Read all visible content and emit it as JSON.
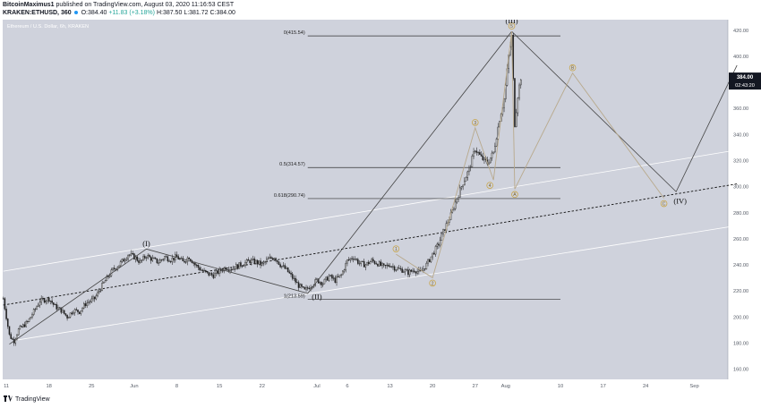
{
  "header": {
    "author": "BitcoinMaximus1",
    "published_text": "published on TradingView.com, August 03, 2020 11:16:53 CEST",
    "symbol": "KRAKEN:ETHUSD, 360",
    "ohlc_open": "O:384.40",
    "ohlc_change": "+11.83 (+3.18%)",
    "ohlc_high": "H:387.50",
    "ohlc_low": "L:381.72",
    "ohlc_close": "C:384.00"
  },
  "footer": {
    "brand": "TradingView"
  },
  "colors": {
    "plot_bg": "#cfd2dc",
    "candle": "#222222",
    "wave_line": "#444444",
    "sub_wave_line": "#b8a98c",
    "fib_line": "#333333",
    "channel_line": "#ffffff",
    "label_circle": "#c8a54a",
    "price_tag": "#131722"
  },
  "chart_data": {
    "type": "candlestick",
    "title": "Ethereum / U.S. Dollar, 6h, KRAKEN",
    "ylim": [
      152,
      428
    ],
    "ylabel": "",
    "xlabel": "",
    "y_ticks": [
      160,
      180,
      200,
      220,
      240,
      260,
      280,
      300,
      320,
      340,
      360,
      380,
      400,
      420
    ],
    "x_ticks": [
      {
        "label": "11",
        "day": 11
      },
      {
        "label": "18",
        "day": 18
      },
      {
        "label": "25",
        "day": 25
      },
      {
        "label": "Jun",
        "day": 32
      },
      {
        "label": "8",
        "day": 39
      },
      {
        "label": "15",
        "day": 46
      },
      {
        "label": "22",
        "day": 53
      },
      {
        "label": "Jul",
        "day": 62
      },
      {
        "label": "6",
        "day": 67
      },
      {
        "label": "13",
        "day": 74
      },
      {
        "label": "20",
        "day": 81
      },
      {
        "label": "27",
        "day": 88
      },
      {
        "label": "Aug",
        "day": 93
      },
      {
        "label": "10",
        "day": 102
      },
      {
        "label": "17",
        "day": 109
      },
      {
        "label": "24",
        "day": 116
      },
      {
        "label": "Sep",
        "day": 124
      }
    ],
    "last_price": "384.00",
    "countdown": "02:43:20",
    "price_path": [
      [
        10.5,
        214
      ],
      [
        11.5,
        186
      ],
      [
        12.2,
        181
      ],
      [
        13,
        190
      ],
      [
        14.5,
        196
      ],
      [
        15.5,
        204
      ],
      [
        16.5,
        212
      ],
      [
        18,
        214
      ],
      [
        19,
        208
      ],
      [
        20,
        205
      ],
      [
        21,
        200
      ],
      [
        22,
        205
      ],
      [
        23,
        204
      ],
      [
        24,
        210
      ],
      [
        25.5,
        214
      ],
      [
        27,
        226
      ],
      [
        28.5,
        236
      ],
      [
        29.5,
        240
      ],
      [
        30.5,
        245
      ],
      [
        31,
        248
      ],
      [
        32,
        246
      ],
      [
        33,
        242
      ],
      [
        34,
        247
      ],
      [
        35,
        244
      ],
      [
        36,
        242
      ],
      [
        37,
        246
      ],
      [
        38,
        244
      ],
      [
        39,
        246
      ],
      [
        40,
        242
      ],
      [
        41,
        246
      ],
      [
        42,
        240
      ],
      [
        43,
        236
      ],
      [
        44,
        233
      ],
      [
        45,
        232
      ],
      [
        46,
        235
      ],
      [
        47,
        238
      ],
      [
        48,
        237
      ],
      [
        49,
        239
      ],
      [
        50,
        241
      ],
      [
        51,
        243
      ],
      [
        52,
        242
      ],
      [
        53,
        240
      ],
      [
        54,
        244
      ],
      [
        55,
        246
      ],
      [
        56,
        240
      ],
      [
        57,
        236
      ],
      [
        58,
        230
      ],
      [
        59,
        224
      ],
      [
        60,
        220
      ],
      [
        61,
        224
      ],
      [
        62,
        228
      ],
      [
        63,
        226
      ],
      [
        64,
        231
      ],
      [
        65,
        228
      ],
      [
        66,
        232
      ],
      [
        67,
        243
      ],
      [
        68,
        246
      ],
      [
        69,
        241
      ],
      [
        70,
        240
      ],
      [
        71,
        243
      ],
      [
        72,
        241
      ],
      [
        73,
        238
      ],
      [
        74,
        240
      ],
      [
        75,
        237
      ],
      [
        76,
        236
      ],
      [
        77,
        234
      ],
      [
        78,
        236
      ],
      [
        79,
        234
      ],
      [
        80,
        240
      ],
      [
        81,
        248
      ],
      [
        82,
        256
      ],
      [
        83,
        268
      ],
      [
        84,
        278
      ],
      [
        85,
        291
      ],
      [
        86,
        303
      ],
      [
        87,
        313
      ],
      [
        88,
        329
      ],
      [
        89,
        322
      ],
      [
        90,
        318
      ],
      [
        91,
        326
      ],
      [
        92,
        352
      ],
      [
        92.8,
        368
      ],
      [
        93.5,
        400
      ],
      [
        94,
        415
      ],
      [
        94.5,
        348
      ],
      [
        95,
        370
      ],
      [
        95.5,
        384
      ]
    ],
    "main_waves": {
      "labels": [
        {
          "text": "(I)",
          "day": 34,
          "price": 253,
          "pos": "above"
        },
        {
          "text": "(II)",
          "day": 62,
          "price": 219,
          "pos": "below"
        },
        {
          "text": "(III)",
          "day": 94,
          "price": 424,
          "pos": "above"
        },
        {
          "text": "(IV)",
          "day": 120,
          "price": 287,
          "pos": "right"
        }
      ],
      "impulse_path": [
        [
          11.5,
          179
        ],
        [
          34,
          252
        ],
        [
          60.5,
          218
        ],
        [
          94,
          419
        ]
      ],
      "projection_path": [
        [
          94,
          419
        ],
        [
          121,
          296
        ],
        [
          131,
          393
        ]
      ]
    },
    "sub_waves": {
      "labels": [
        "1",
        "2",
        "3",
        "4",
        "5",
        "A",
        "B",
        "C"
      ],
      "points": [
        [
          75,
          248
        ],
        [
          81,
          230
        ],
        [
          88,
          345
        ],
        [
          91,
          305
        ],
        [
          94,
          419
        ],
        [
          94.5,
          298
        ],
        [
          104,
          387
        ],
        [
          119,
          291
        ]
      ]
    },
    "fib_levels": [
      {
        "label": "0(415.54)",
        "price": 415.54
      },
      {
        "label": "0.5(314.57)",
        "price": 314.57
      },
      {
        "label": "0.618(290.74)",
        "price": 290.74
      },
      {
        "label": "1(213.59)",
        "price": 213.59
      }
    ],
    "channel": {
      "upper": [
        [
          10.5,
          235
        ],
        [
          131,
          328
        ]
      ],
      "middle": [
        [
          10.5,
          209
        ],
        [
          131,
          302
        ]
      ],
      "lower": [
        [
          12.5,
          182
        ],
        [
          131,
          270
        ]
      ]
    }
  }
}
